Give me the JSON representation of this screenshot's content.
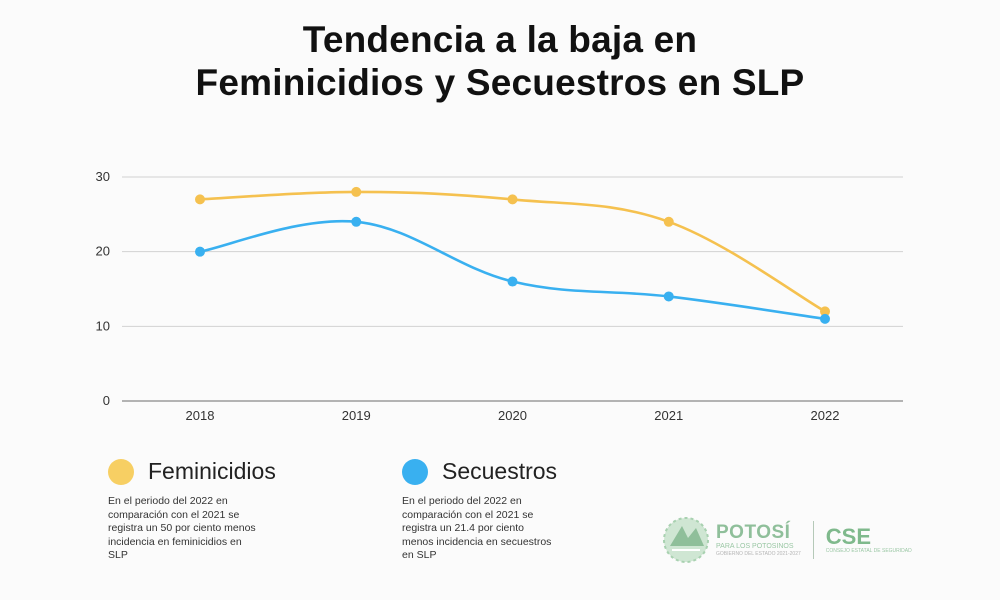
{
  "title": {
    "line1": "Tendencia a la baja en",
    "line2": "Feminicidios y Secuestros en SLP"
  },
  "chart_data": {
    "type": "line",
    "x": [
      "2018",
      "2019",
      "2020",
      "2021",
      "2022"
    ],
    "series": [
      {
        "name": "Feminicidios",
        "color": "#f5c14f",
        "values": [
          27,
          28,
          27,
          24,
          12
        ]
      },
      {
        "name": "Secuestros",
        "color": "#39b0f0",
        "values": [
          20,
          24,
          16,
          14,
          11
        ]
      }
    ],
    "yticks": [
      0,
      10,
      20,
      30
    ],
    "ylim": [
      0,
      30
    ],
    "grid": true,
    "smooth": true,
    "legend_placement": "bottom"
  },
  "legend": [
    {
      "name": "Feminicidios",
      "color": "#f7cf63",
      "note": "En el periodo del 2022 en\ncomparación con el 2021 se\nregistra un 50  por ciento menos\nincidencia en feminicidios en\nSLP"
    },
    {
      "name": "Secuestros",
      "color": "#39b0f0",
      "note": "En el periodo del 2022 en\ncomparación con el 2021 se\nregistra un 21.4 por ciento\nmenos incidencia en secuestros\nen SLP"
    }
  ],
  "logos": {
    "potosi": "POTOSÍ",
    "potosi_sub": "PARA LOS POTOSINOS",
    "potosi_sub2": "GOBIERNO DEL ESTADO 2021-2027",
    "cse": "CSE",
    "cse_sub": "CONSEJO ESTATAL DE SEGURIDAD"
  }
}
